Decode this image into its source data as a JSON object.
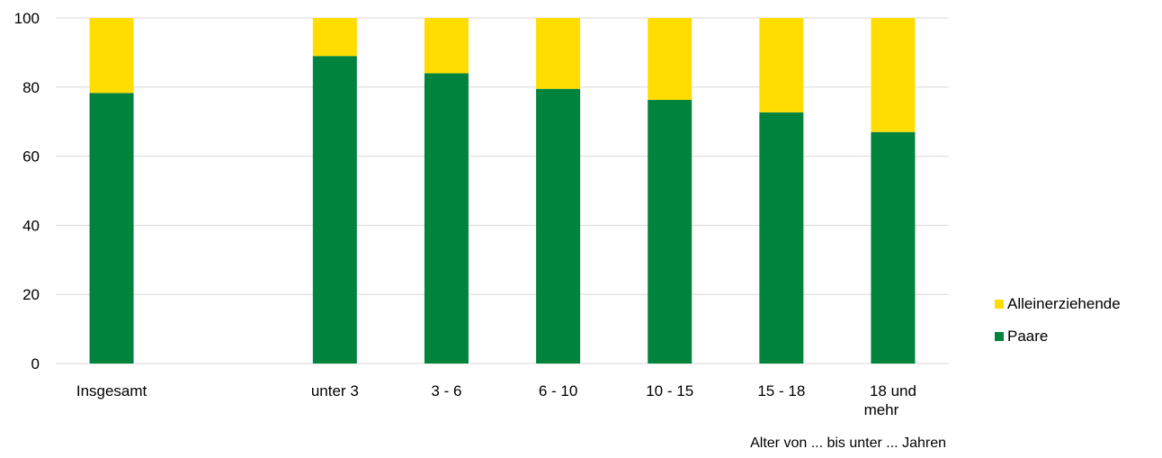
{
  "chart_data": {
    "type": "bar",
    "stacked": true,
    "categories": [
      "Insgesamt",
      "",
      "unter 3",
      "3 - 6",
      "6 - 10",
      "10 - 15",
      "15 - 18",
      "18 und mehr"
    ],
    "category_lines": [
      [
        "Insgesamt"
      ],
      [],
      [
        "unter 3"
      ],
      [
        "3 - 6"
      ],
      [
        "6 - 10"
      ],
      [
        "10 - 15"
      ],
      [
        "15 - 18"
      ],
      [
        "18 und",
        "mehr"
      ]
    ],
    "series": [
      {
        "name": "Paare",
        "color": "#00843D",
        "values": [
          78.3,
          null,
          89,
          84,
          79.5,
          76.3,
          72.7,
          67
        ]
      },
      {
        "name": "Alleinerziehende",
        "color": "#FFDD00",
        "values": [
          21.7,
          null,
          11,
          16,
          20.5,
          23.7,
          27.3,
          33
        ]
      }
    ],
    "xlabel": "Alter von ... bis unter ... Jahren",
    "ylabel": "",
    "ylim": [
      0,
      100
    ],
    "yticks": [
      0,
      20,
      40,
      60,
      80,
      100
    ],
    "grid": true,
    "legend_position": "right"
  }
}
